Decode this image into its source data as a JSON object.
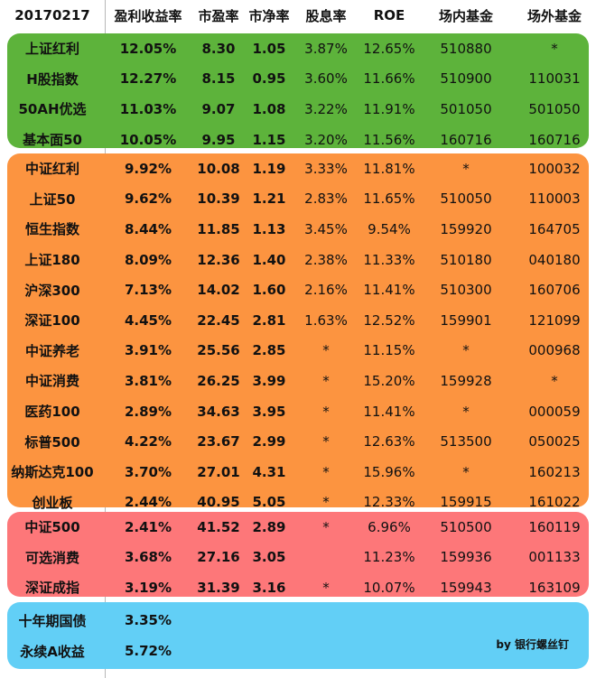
{
  "header": [
    "20170217",
    "盈利收益率",
    "市盈率",
    "市净率",
    "股息率",
    "ROE",
    "场内基金",
    "场外基金"
  ],
  "groups": [
    {
      "id": "green",
      "color": "#5db33b",
      "rows": [
        [
          "上证红利",
          "12.05%",
          "8.30",
          "1.05",
          "3.87%",
          "12.65%",
          "510880",
          "*"
        ],
        [
          "H股指数",
          "12.27%",
          "8.15",
          "0.95",
          "3.60%",
          "11.66%",
          "510900",
          "110031"
        ],
        [
          "50AH优选",
          "11.03%",
          "9.07",
          "1.08",
          "3.22%",
          "11.91%",
          "501050",
          "501050"
        ],
        [
          "基本面50",
          "10.05%",
          "9.95",
          "1.15",
          "3.20%",
          "11.56%",
          "160716",
          "160716"
        ]
      ]
    },
    {
      "id": "orange",
      "color": "#fc9440",
      "rows": [
        [
          "中证红利",
          "9.92%",
          "10.08",
          "1.19",
          "3.33%",
          "11.81%",
          "*",
          "100032"
        ],
        [
          "上证50",
          "9.62%",
          "10.39",
          "1.21",
          "2.83%",
          "11.65%",
          "510050",
          "110003"
        ],
        [
          "恒生指数",
          "8.44%",
          "11.85",
          "1.13",
          "3.45%",
          "9.54%",
          "159920",
          "164705"
        ],
        [
          "上证180",
          "8.09%",
          "12.36",
          "1.40",
          "2.38%",
          "11.33%",
          "510180",
          "040180"
        ],
        [
          "沪深300",
          "7.13%",
          "14.02",
          "1.60",
          "2.16%",
          "11.41%",
          "510300",
          "160706"
        ],
        [
          "深证100",
          "4.45%",
          "22.45",
          "2.81",
          "1.63%",
          "12.52%",
          "159901",
          "121099"
        ],
        [
          "中证养老",
          "3.91%",
          "25.56",
          "2.85",
          "*",
          "11.15%",
          "*",
          "000968"
        ],
        [
          "中证消费",
          "3.81%",
          "26.25",
          "3.99",
          "*",
          "15.20%",
          "159928",
          "*"
        ],
        [
          "医药100",
          "2.89%",
          "34.63",
          "3.95",
          "*",
          "11.41%",
          "*",
          "000059"
        ],
        [
          "标普500",
          "4.22%",
          "23.67",
          "2.99",
          "*",
          "12.63%",
          "513500",
          "050025"
        ],
        [
          "纳斯达克100",
          "3.70%",
          "27.01",
          "4.31",
          "*",
          "15.96%",
          "*",
          "160213"
        ],
        [
          "创业板",
          "2.44%",
          "40.95",
          "5.05",
          "*",
          "12.33%",
          "159915",
          "161022"
        ]
      ]
    },
    {
      "id": "red",
      "color": "#fd7779",
      "rows": [
        [
          "中证500",
          "2.41%",
          "41.52",
          "2.89",
          "*",
          "6.96%",
          "510500",
          "160119"
        ],
        [
          "可选消费",
          "3.68%",
          "27.16",
          "3.05",
          "",
          "11.23%",
          "159936",
          "001133"
        ],
        [
          "深证成指",
          "3.19%",
          "31.39",
          "3.16",
          "*",
          "10.07%",
          "159943",
          "163109"
        ]
      ]
    },
    {
      "id": "blue",
      "color": "#62cff6",
      "rows": [
        [
          "十年期国债",
          "3.35%",
          "",
          "",
          "",
          "",
          "",
          ""
        ],
        [
          "永续A收益",
          "5.72%",
          "",
          "",
          "",
          "",
          "",
          ""
        ]
      ]
    }
  ],
  "credit": "by 银行螺丝钉"
}
